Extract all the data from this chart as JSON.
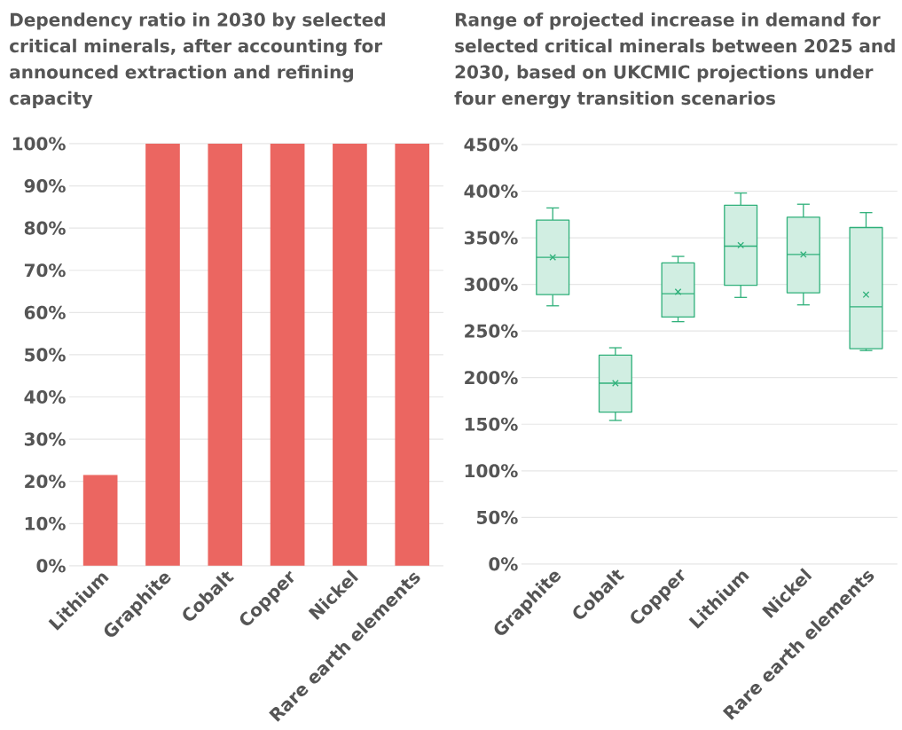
{
  "chart_data": [
    {
      "type": "bar",
      "title": "Dependency ratio in 2030 by selected critical minerals, after accounting for announced extraction and refining capacity",
      "categories": [
        "Lithium",
        "Graphite",
        "Cobalt",
        "Copper",
        "Nickel",
        "Rare earth elements"
      ],
      "values": [
        21.5,
        100,
        100,
        100,
        100,
        100
      ],
      "color": "#eb6661",
      "ylim": [
        0,
        100
      ],
      "yticks": [
        {
          "value": 0,
          "label": "0%"
        },
        {
          "value": 10,
          "label": "10%"
        },
        {
          "value": 20,
          "label": "20%"
        },
        {
          "value": 30,
          "label": "30%"
        },
        {
          "value": 40,
          "label": "40%"
        },
        {
          "value": 50,
          "label": "50%"
        },
        {
          "value": 60,
          "label": "60%"
        },
        {
          "value": 70,
          "label": "70%"
        },
        {
          "value": 80,
          "label": "80%"
        },
        {
          "value": 90,
          "label": "90%"
        },
        {
          "value": 100,
          "label": "100%"
        }
      ],
      "grid": "y"
    },
    {
      "type": "box",
      "title": "Range of projected increase in demand for selected critical minerals between 2025 and 2030, based on UKCMIC projections under four energy transition scenarios",
      "categories": [
        "Graphite",
        "Cobalt",
        "Copper",
        "Lithium",
        "Nickel",
        "Rare earth elements"
      ],
      "boxes": [
        {
          "low": 277,
          "q1": 289,
          "median": 329,
          "q3": 369,
          "high": 382,
          "mean": 329
        },
        {
          "low": 154,
          "q1": 163,
          "median": 194,
          "q3": 224,
          "high": 232,
          "mean": 194
        },
        {
          "low": 260,
          "q1": 265,
          "median": 290,
          "q3": 323,
          "high": 330,
          "mean": 292
        },
        {
          "low": 286,
          "q1": 299,
          "median": 341,
          "q3": 385,
          "high": 398,
          "mean": 342
        },
        {
          "low": 278,
          "q1": 291,
          "median": 332,
          "q3": 372,
          "high": 386,
          "mean": 332
        },
        {
          "low": 229,
          "q1": 231,
          "median": 276,
          "q3": 361,
          "high": 377,
          "mean": 289
        }
      ],
      "color": "#2fb07a",
      "marker": "cross",
      "ylim": [
        0,
        450
      ],
      "yticks": [
        {
          "value": 0,
          "label": "0%"
        },
        {
          "value": 50,
          "label": "50%"
        },
        {
          "value": 100,
          "label": "100%"
        },
        {
          "value": 150,
          "label": "150%"
        },
        {
          "value": 200,
          "label": "200%"
        },
        {
          "value": 250,
          "label": "250%"
        },
        {
          "value": 300,
          "label": "300%"
        },
        {
          "value": 350,
          "label": "350%"
        },
        {
          "value": 400,
          "label": "400%"
        },
        {
          "value": 450,
          "label": "450%"
        }
      ],
      "grid": "y"
    }
  ]
}
